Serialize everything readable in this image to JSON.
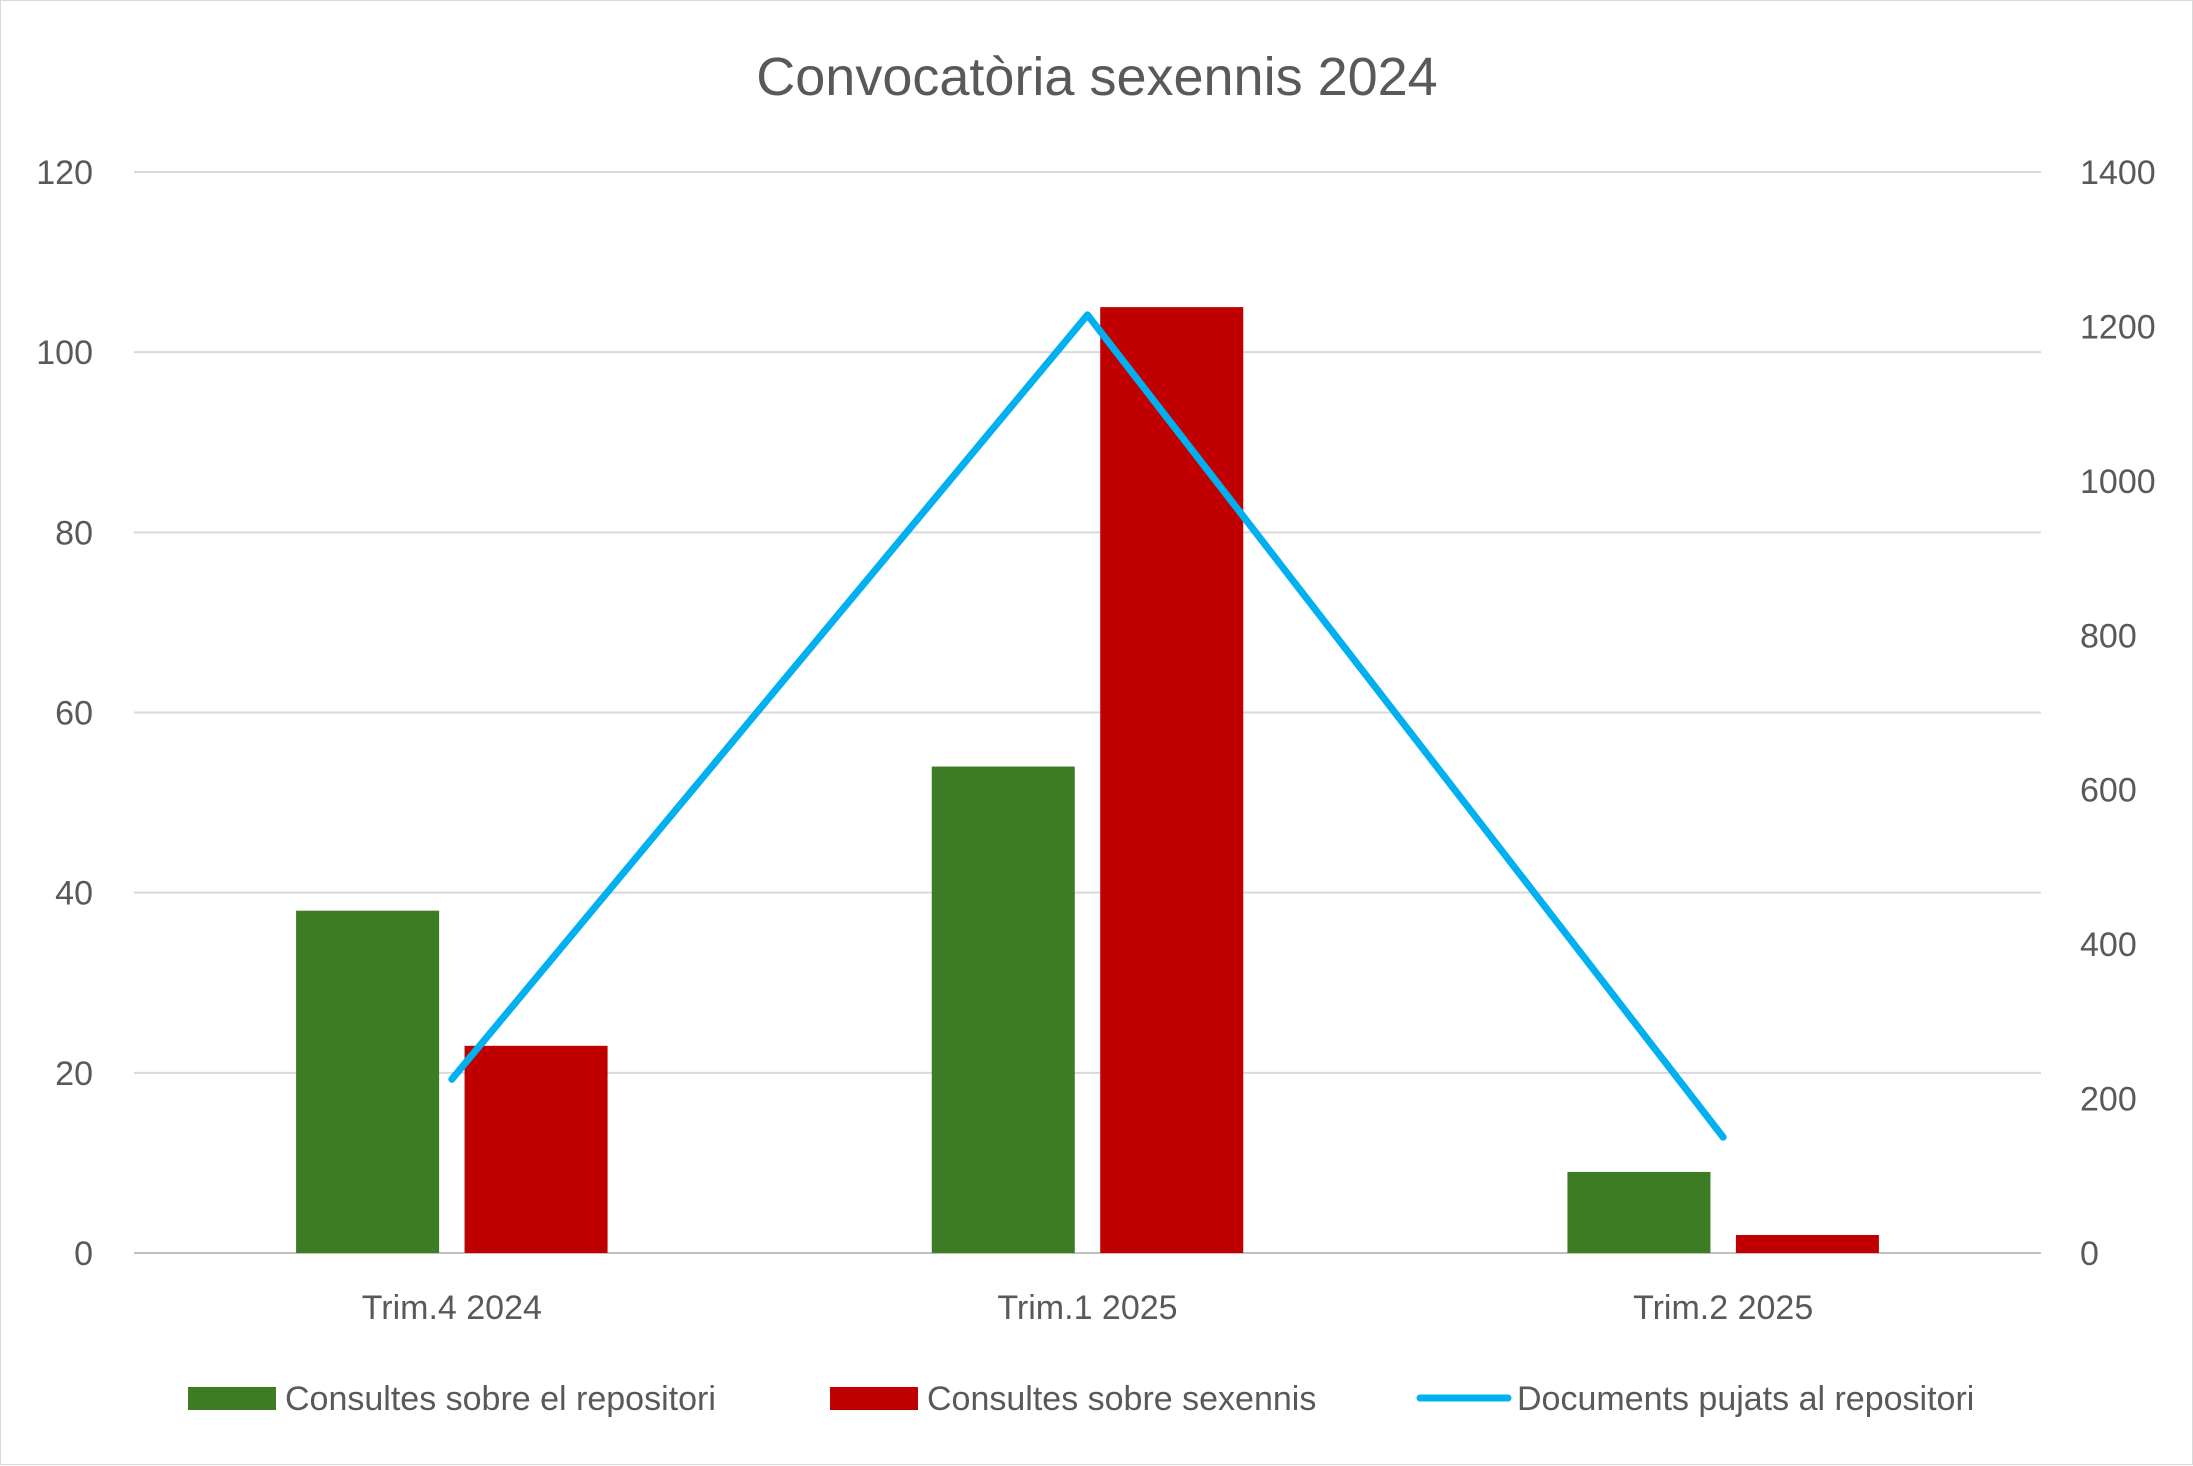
{
  "chart_data": {
    "type": "bar",
    "title": "Convocatòria sexennis 2024",
    "categories": [
      "Trim.4 2024",
      "Trim.1 2025",
      "Trim.2 2025"
    ],
    "series": [
      {
        "name": "Consultes sobre el repositori",
        "type": "bar",
        "axis": "left",
        "color": "#3d7c24",
        "values": [
          38,
          54,
          9
        ]
      },
      {
        "name": "Consultes sobre sexennis",
        "type": "bar",
        "axis": "left",
        "color": "#c00000",
        "values": [
          23,
          105,
          2
        ]
      },
      {
        "name": "Documents pujats al repositori",
        "type": "line",
        "axis": "right",
        "color": "#00b0f0",
        "values": [
          225,
          1215,
          150
        ]
      }
    ],
    "y_left": {
      "min": 0,
      "max": 120,
      "ticks": [
        "0",
        "20",
        "40",
        "60",
        "80",
        "100",
        "120"
      ]
    },
    "y_right": {
      "min": 0,
      "max": 1400,
      "ticks": [
        "0",
        "200",
        "400",
        "600",
        "800",
        "1000",
        "1200",
        "1400"
      ]
    },
    "grid": true,
    "legend_position": "bottom"
  }
}
